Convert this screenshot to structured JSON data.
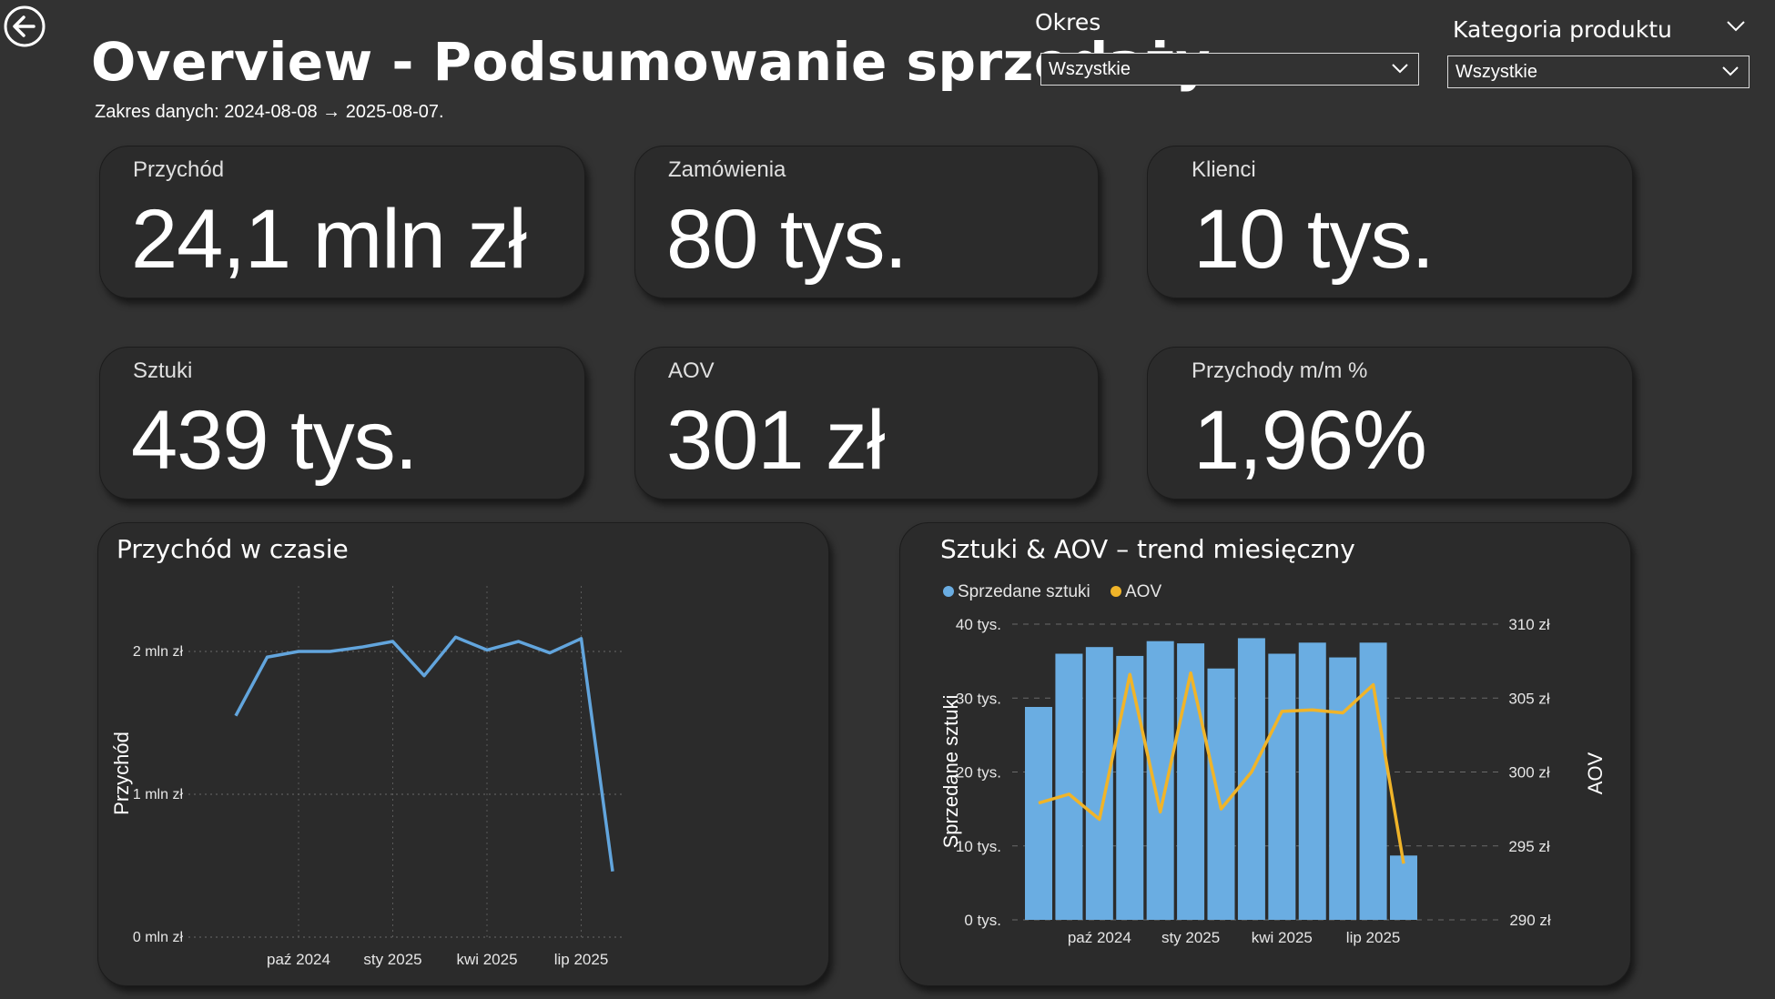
{
  "header": {
    "title": "Overview - Podsumowanie sprzedaży",
    "date_range": "Zakres danych: 2024-08-08 → 2025-08-07."
  },
  "filters": {
    "period": {
      "label": "Okres",
      "selected": "Wszystkie"
    },
    "category": {
      "label": "Kategoria produktu",
      "selected": "Wszystkie"
    }
  },
  "icons": {
    "back": "arrow-left-circle-icon",
    "chevron": "chevron-down-icon"
  },
  "kpis": [
    {
      "label": "Przychód",
      "value": "24,1 mln zł"
    },
    {
      "label": "Zamówienia",
      "value": "80 tys."
    },
    {
      "label": "Klienci",
      "value": "10 tys."
    },
    {
      "label": "Sztuki",
      "value": "439 tys."
    },
    {
      "label": "AOV",
      "value": "301 zł"
    },
    {
      "label": "Przychody m/m %",
      "value": "1,96%"
    }
  ],
  "colors": {
    "background": "#323232",
    "card": "#2b2b2b",
    "line_blue": "#62a5dd",
    "bar_blue": "#6aade2",
    "aov_yellow": "#f0b429"
  },
  "chart_data": [
    {
      "type": "line",
      "title": "Przychód w czasie",
      "xlabel": "",
      "ylabel": "Przychód",
      "x": [
        "2024-08",
        "2024-09",
        "2024-10",
        "2024-11",
        "2024-12",
        "2025-01",
        "2025-02",
        "2025-03",
        "2025-04",
        "2025-05",
        "2025-06",
        "2025-07",
        "2025-08"
      ],
      "x_tick_labels": [
        "paź 2024",
        "sty 2025",
        "kwi 2025",
        "lip 2025"
      ],
      "x_tick_positions": [
        "2024-10",
        "2025-01",
        "2025-04",
        "2025-07"
      ],
      "series": [
        {
          "values": [
            1.55,
            1.96,
            2.0,
            2.0,
            2.03,
            2.07,
            1.83,
            2.1,
            2.01,
            2.07,
            1.99,
            2.09,
            0.46
          ]
        }
      ],
      "y_ticks": [
        "0 mln zł",
        "1 mln zł",
        "2 mln zł"
      ],
      "ylim": [
        0,
        2.0
      ],
      "y_unit": "mln zł",
      "grid": true
    },
    {
      "type": "bar",
      "title": "Sztuki & AOV – trend miesięczny",
      "ylabel": "Sprzedane sztuki",
      "y2label": "AOV",
      "legend": [
        "Sprzedane sztuki",
        "AOV"
      ],
      "legend_position": "top-left",
      "categories": [
        "2024-08",
        "2024-09",
        "2024-10",
        "2024-11",
        "2024-12",
        "2025-01",
        "2025-02",
        "2025-03",
        "2025-04",
        "2025-05",
        "2025-06",
        "2025-07",
        "2025-08"
      ],
      "x_tick_labels": [
        "paź 2024",
        "sty 2025",
        "kwi 2025",
        "lip 2025"
      ],
      "x_tick_positions": [
        "2024-10",
        "2025-01",
        "2025-04",
        "2025-07"
      ],
      "series": [
        {
          "name": "Sprzedane sztuki",
          "type": "bar",
          "values": [
            28800,
            36000,
            36900,
            35700,
            37700,
            37400,
            34000,
            38100,
            36000,
            37500,
            35500,
            37500,
            8700
          ]
        },
        {
          "name": "AOV",
          "type": "line",
          "values": [
            297.9,
            298.5,
            296.8,
            306.6,
            297.3,
            306.7,
            297.5,
            300.0,
            304.1,
            304.2,
            304.0,
            305.9,
            293.8
          ]
        }
      ],
      "y_ticks": [
        "0 tys.",
        "10 tys.",
        "20 tys.",
        "30 tys.",
        "40 tys."
      ],
      "y2_ticks": [
        "290 zł",
        "295 zł",
        "300 zł",
        "305 zł",
        "310 zł"
      ],
      "ylim": [
        0,
        40000
      ],
      "y2lim": [
        290,
        310
      ],
      "grid": true
    }
  ]
}
